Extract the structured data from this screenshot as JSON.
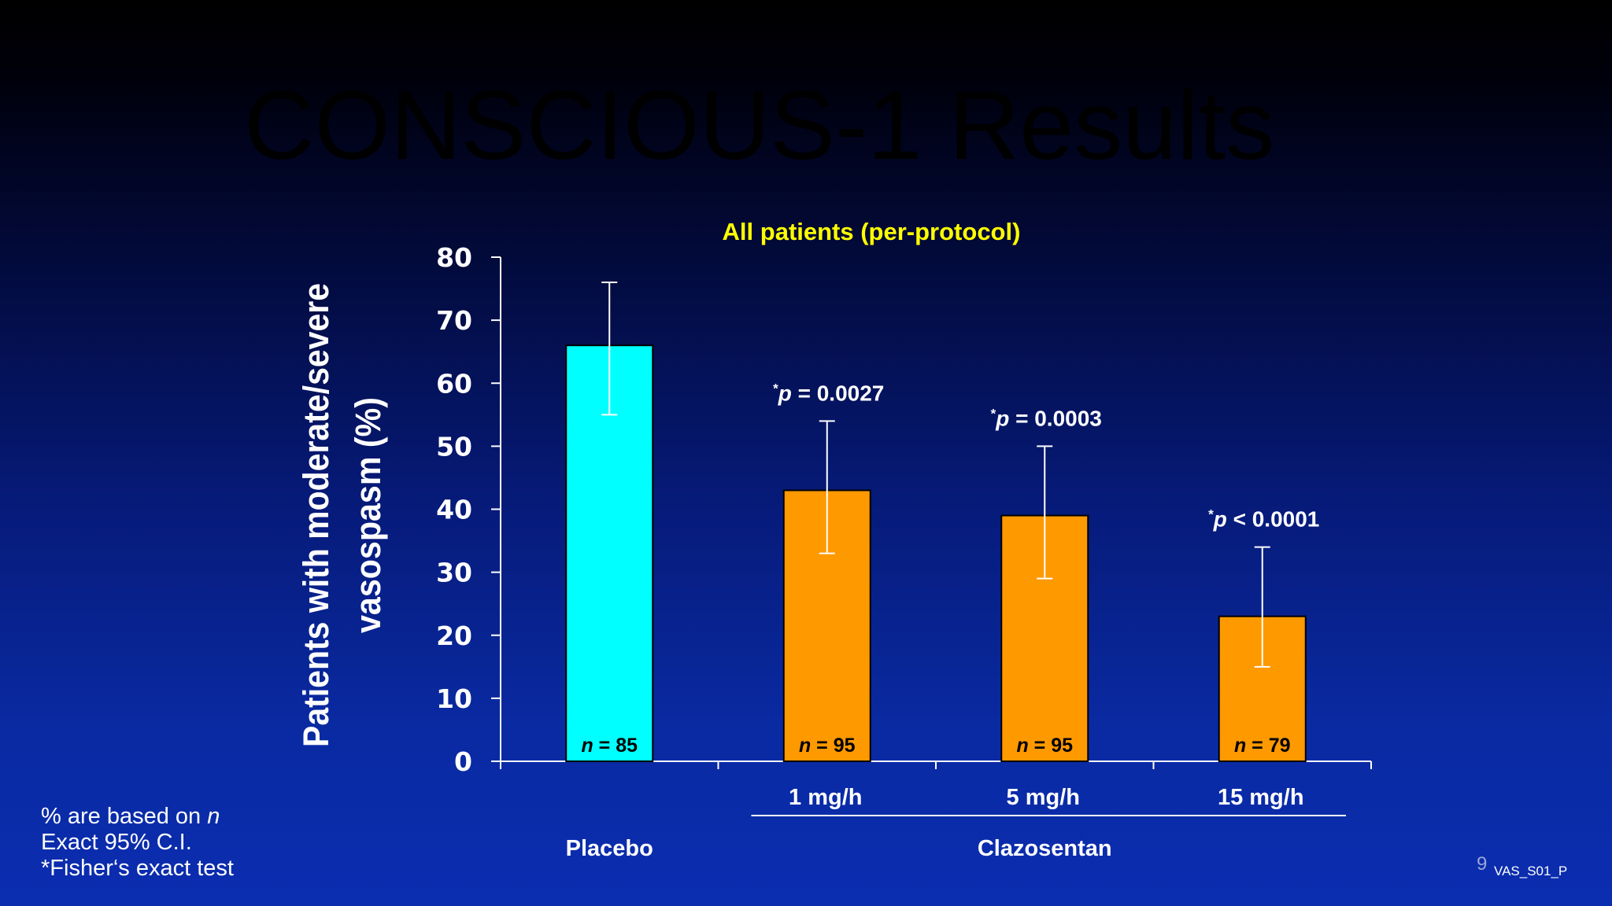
{
  "slide": {
    "title": "CONSCIOUS-1 Results",
    "page_number": "9",
    "code": "VAS_S01_P"
  },
  "footnotes": {
    "line1_prefix": "% are based on ",
    "line1_var": "n",
    "line2": "Exact 95% C.I.",
    "line3": "*Fisher‘s exact test"
  },
  "colors": {
    "placebo": "#00ffff",
    "clazosentan": "#ff9900",
    "title": "#000000",
    "subtitle": "#ffff00"
  },
  "chart_data": {
    "type": "bar",
    "title": "All patients (per-protocol)",
    "ylabel": "Patients with moderate/severe vasospasm (%)",
    "ylabel_lines": [
      "Patients with moderate/severe",
      "vasospasm (%)"
    ],
    "ylim": [
      0,
      80
    ],
    "yticks": [
      0,
      10,
      20,
      30,
      40,
      50,
      60,
      70,
      80
    ],
    "categories": [
      "",
      "1 mg/h",
      "5 mg/h",
      "15 mg/h"
    ],
    "groups": [
      {
        "label": "Placebo",
        "categories": [
          0
        ]
      },
      {
        "label": "Clazosentan",
        "categories": [
          1,
          2,
          3
        ]
      }
    ],
    "values": [
      66,
      43,
      39,
      23
    ],
    "ci_low": [
      55,
      33,
      29,
      15
    ],
    "ci_high": [
      76,
      54,
      50,
      34
    ],
    "n_prefix": "n",
    "n": [
      "85",
      "95",
      "95",
      "79"
    ],
    "p_values": [
      "",
      "= 0.0027",
      "= 0.0003",
      "< 0.0001"
    ],
    "p_prefix": "p",
    "p_marker": "*",
    "bar_colors": [
      "#00ffff",
      "#ff9900",
      "#ff9900",
      "#ff9900"
    ],
    "grid": false,
    "legend": "none"
  }
}
